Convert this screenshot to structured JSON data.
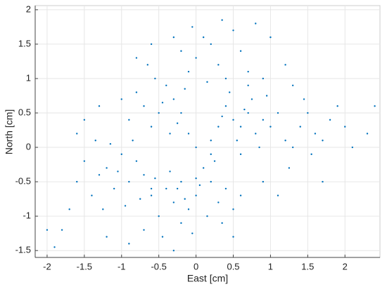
{
  "chart_data": {
    "type": "scatter",
    "x_label": "East [cm]",
    "y_label": "North [cm]",
    "xlim": [
      -2.16,
      2.47
    ],
    "ylim": [
      -1.6,
      2.06
    ],
    "xticks": [
      -2,
      -1.5,
      -1,
      -0.5,
      0,
      0.5,
      1,
      1.5,
      2
    ],
    "yticks": [
      -1.5,
      -1,
      -0.5,
      0,
      0.5,
      1,
      1.5,
      2
    ],
    "grid": true,
    "series": [
      {
        "color": "#0072bd",
        "x": [
          -1.2,
          -0.9,
          -1.1,
          -0.8,
          -1.3,
          -1.0,
          -0.7,
          -1.4,
          -1.15,
          -0.95,
          -1.5,
          -0.6,
          -1.25,
          -0.85,
          -1.6,
          -1.05,
          -0.75,
          -1.35,
          -1.7,
          -1.8,
          -0.2,
          0.0,
          -0.4,
          0.2,
          -0.1,
          0.1,
          -0.3,
          0.3,
          -0.5,
          0.0,
          -0.6,
          0.4,
          -0.2,
          0.15,
          -0.35,
          0.25,
          -0.7,
          -0.45,
          0.5,
          -0.05,
          -0.25,
          0.05,
          0.35,
          -0.55,
          -0.15,
          0.5,
          0.7,
          0.6,
          0.8,
          0.4,
          0.9,
          0.55,
          0.75,
          1.0,
          0.3,
          0.65,
          0.85,
          0.45,
          1.1,
          0.2,
          0.6,
          0.95,
          0.35,
          1.2,
          0.7,
          -0.5,
          -0.3,
          -0.7,
          -0.4,
          -0.6,
          -0.2,
          -0.8,
          -0.35,
          -0.55,
          -0.9,
          -0.15,
          -0.45,
          -1.0,
          -0.25,
          -0.65,
          0.0,
          0.2,
          -0.1,
          0.3,
          0.1,
          -0.2,
          0.4,
          0.5,
          0.6,
          0.8,
          -0.3,
          0.15,
          0.35,
          1.0,
          -0.05,
          0.7,
          1.2,
          0.9,
          1.4,
          1.6,
          1.5,
          1.3,
          1.8,
          1.7,
          1.45,
          2.0,
          1.9,
          2.3,
          1.25,
          1.55,
          2.1,
          -2.0,
          -1.9,
          -1.5,
          -1.3,
          0.0,
          0.2,
          -0.1,
          0.9,
          1.1,
          0.6,
          -0.9,
          -1.2,
          -0.6,
          -0.8,
          1.3,
          0.5,
          -0.3,
          -1.6,
          1.7,
          2.4
        ],
        "y": [
          -0.3,
          -0.5,
          -0.6,
          -0.2,
          -0.4,
          -0.1,
          -0.4,
          -0.7,
          0.05,
          -0.85,
          -0.2,
          -0.6,
          -0.9,
          0.1,
          -0.5,
          -0.35,
          -0.75,
          0.1,
          -0.9,
          -1.2,
          -0.5,
          -0.7,
          -0.6,
          -0.5,
          -0.9,
          -0.3,
          -0.8,
          -0.8,
          -1.0,
          -0.45,
          -0.7,
          -0.6,
          -1.1,
          -1.0,
          -0.35,
          -0.2,
          -1.2,
          -1.3,
          -0.9,
          -1.25,
          -0.6,
          -0.55,
          -1.1,
          -0.45,
          -0.75,
          0.4,
          0.5,
          0.3,
          0.2,
          0.6,
          0.4,
          0.1,
          0.7,
          0.3,
          0.3,
          0.55,
          0.0,
          0.8,
          0.5,
          0.1,
          -0.1,
          0.75,
          0.45,
          0.1,
          0.9,
          0.5,
          0.7,
          0.6,
          0.9,
          0.3,
          0.5,
          0.8,
          0.2,
          1.0,
          0.4,
          0.85,
          0.65,
          0.7,
          0.35,
          1.2,
          1.3,
          1.5,
          1.1,
          1.2,
          1.6,
          1.4,
          1.0,
          1.7,
          1.4,
          1.8,
          1.6,
          0.95,
          1.85,
          1.6,
          1.75,
          1.1,
          1.2,
          1.0,
          0.3,
          0.2,
          0.5,
          0.0,
          0.4,
          0.1,
          0.7,
          0.3,
          0.6,
          0.2,
          -0.3,
          -0.1,
          0.0,
          -1.2,
          -1.45,
          0.4,
          0.6,
          0.0,
          -0.1,
          0.2,
          -0.5,
          -0.7,
          -0.7,
          -1.4,
          -1.3,
          1.5,
          1.3,
          0.9,
          -1.3,
          -1.5,
          0.2,
          -0.5,
          0.6
        ]
      }
    ]
  }
}
